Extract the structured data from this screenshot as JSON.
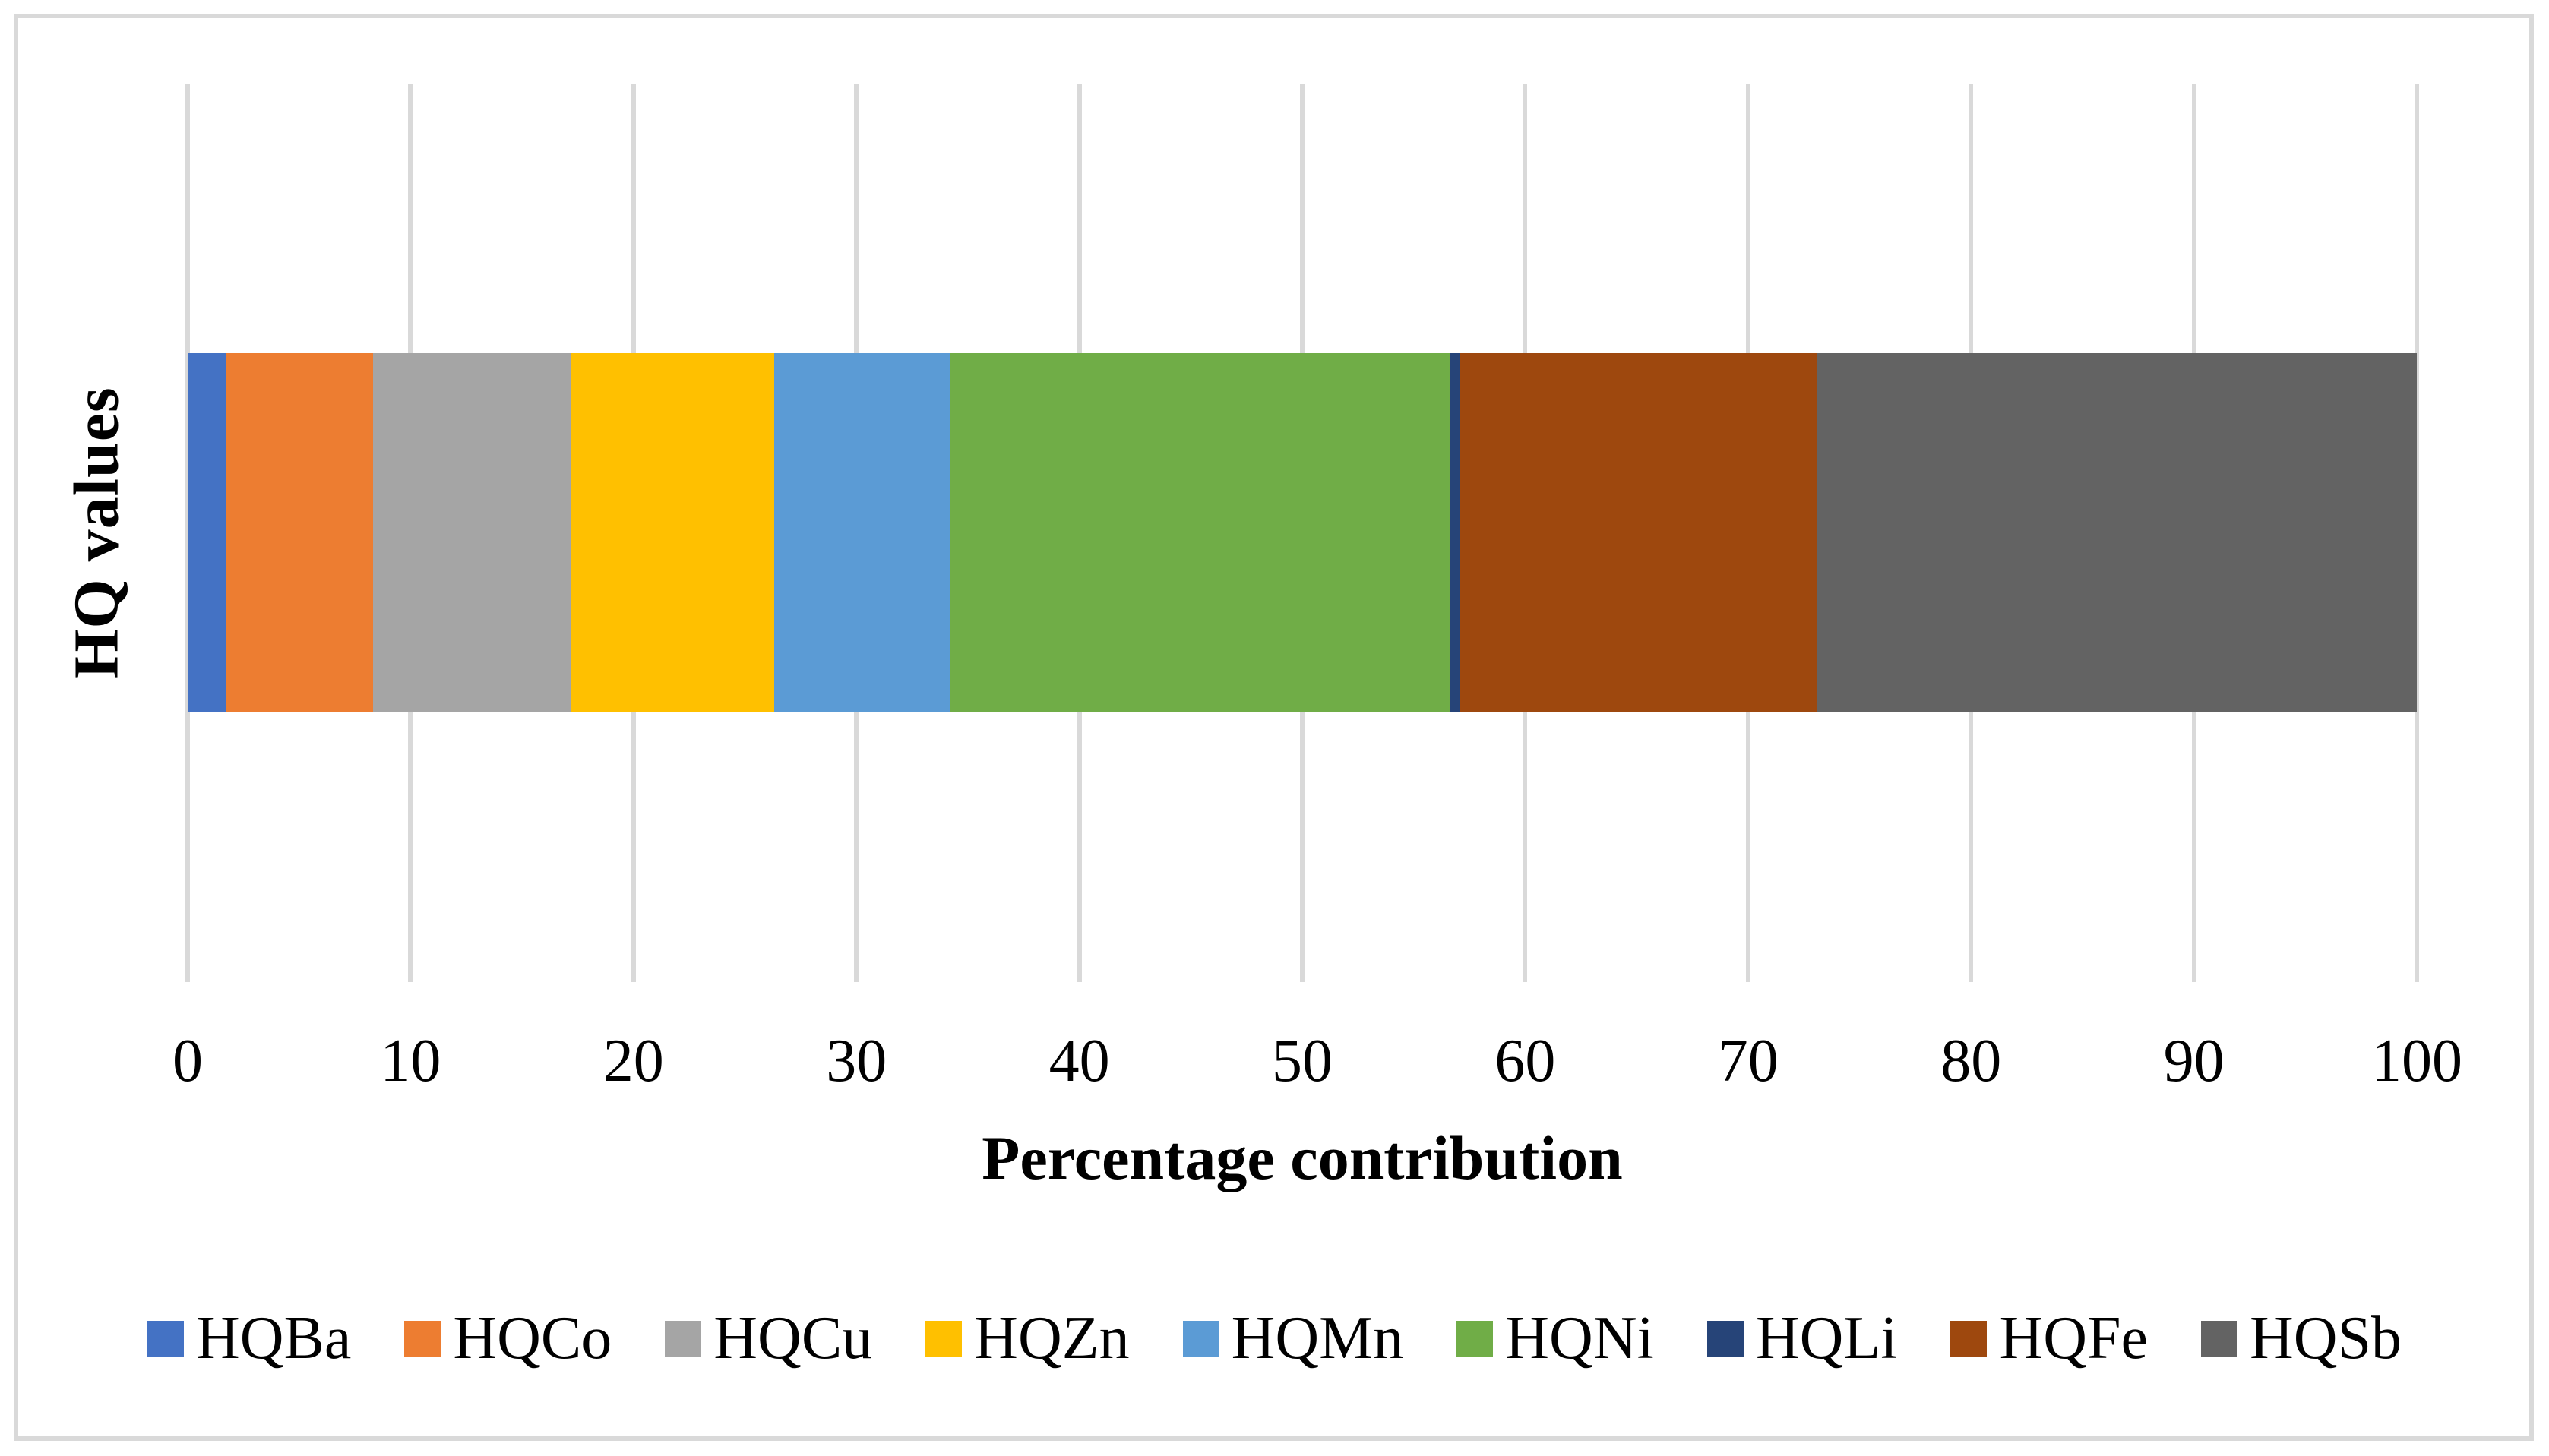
{
  "chart_data": {
    "type": "bar",
    "orientation": "horizontal_stacked",
    "title": "",
    "xlabel": "Percentage contribution",
    "ylabel": "HQ values",
    "xlim": [
      0,
      100
    ],
    "xticks": [
      0,
      10,
      20,
      30,
      40,
      50,
      60,
      70,
      80,
      90,
      100
    ],
    "grid": "vertical",
    "legend_position": "bottom",
    "categories": [
      "HQ values"
    ],
    "series": [
      {
        "name": "HQBa",
        "value": 1.7,
        "color": "#4472C4"
      },
      {
        "name": "HQCo",
        "value": 6.6,
        "color": "#ED7D31"
      },
      {
        "name": "HQCu",
        "value": 8.9,
        "color": "#A5A5A5"
      },
      {
        "name": "HQZn",
        "value": 9.1,
        "color": "#FFC000"
      },
      {
        "name": "HQMn",
        "value": 7.9,
        "color": "#5B9BD5"
      },
      {
        "name": "HQNi",
        "value": 22.4,
        "color": "#70AD47"
      },
      {
        "name": "HQLi",
        "value": 0.5,
        "color": "#264478"
      },
      {
        "name": "HQFe",
        "value": 16.0,
        "color": "#9E480E"
      },
      {
        "name": "HQSb",
        "value": 26.9,
        "color": "#636363"
      }
    ]
  },
  "style": {
    "border_color": "#D9D9D9",
    "gridline_color": "#D9D9D9",
    "background": "#FFFFFF",
    "text_color": "#000000"
  }
}
